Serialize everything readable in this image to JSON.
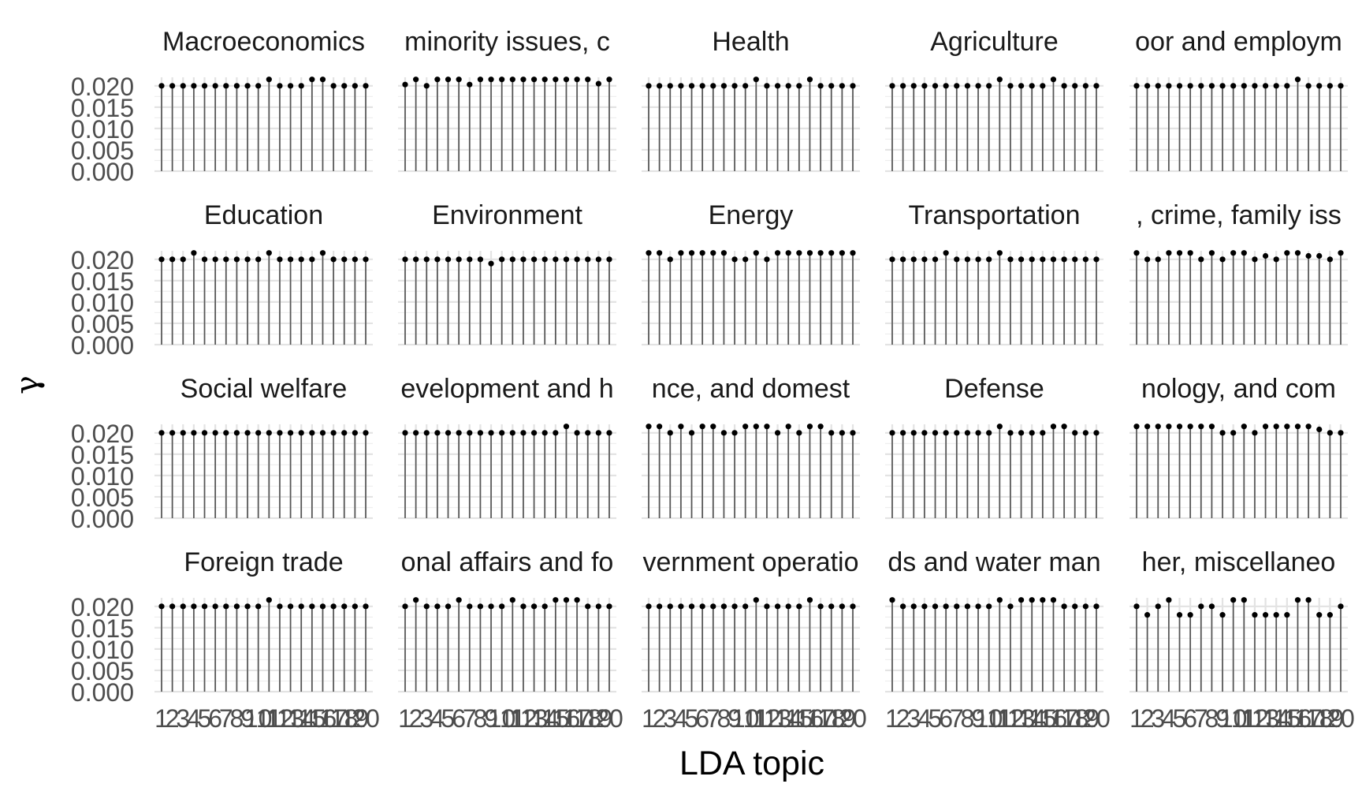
{
  "chart_data": {
    "type": "lollipop",
    "layout": "facet_wrap",
    "ncol": 5,
    "nrow": 4,
    "xlabel": "LDA topic",
    "ylabel": "γ",
    "x": [
      1,
      2,
      3,
      4,
      5,
      6,
      7,
      8,
      9,
      10,
      11,
      12,
      13,
      14,
      15,
      16,
      17,
      18,
      19,
      20
    ],
    "x_tick_labels": [
      "1",
      "2",
      "3",
      "4",
      "5",
      "6",
      "7",
      "8",
      "9",
      "10",
      "11",
      "12",
      "13",
      "14",
      "15",
      "16",
      "17",
      "18",
      "19",
      "20"
    ],
    "ylim": [
      0,
      0.022
    ],
    "y_ticks": [
      0.0,
      0.005,
      0.01,
      0.015,
      0.02
    ],
    "y_tick_labels": [
      "0.000",
      "0.005",
      "0.010",
      "0.015",
      "0.020"
    ],
    "grid": true,
    "panels": [
      {
        "title": "Macroeconomics",
        "values": [
          0.02,
          0.02,
          0.02,
          0.02,
          0.02,
          0.02,
          0.02,
          0.02,
          0.02,
          0.02,
          0.0215,
          0.02,
          0.02,
          0.02,
          0.0215,
          0.0215,
          0.02,
          0.02,
          0.02,
          0.02
        ]
      },
      {
        "title": "minority issues, c",
        "values": [
          0.0203,
          0.0215,
          0.02,
          0.0215,
          0.0215,
          0.0215,
          0.0203,
          0.0215,
          0.0215,
          0.0215,
          0.0215,
          0.0215,
          0.0215,
          0.0215,
          0.0215,
          0.0215,
          0.0215,
          0.0215,
          0.0205,
          0.0215
        ]
      },
      {
        "title": "Health",
        "values": [
          0.02,
          0.02,
          0.02,
          0.02,
          0.02,
          0.02,
          0.02,
          0.02,
          0.02,
          0.02,
          0.0215,
          0.02,
          0.02,
          0.02,
          0.02,
          0.0215,
          0.02,
          0.02,
          0.02,
          0.02
        ]
      },
      {
        "title": "Agriculture",
        "values": [
          0.02,
          0.02,
          0.02,
          0.02,
          0.02,
          0.02,
          0.02,
          0.02,
          0.02,
          0.02,
          0.0215,
          0.02,
          0.02,
          0.02,
          0.02,
          0.0215,
          0.02,
          0.02,
          0.02,
          0.02
        ]
      },
      {
        "title": "oor and employm",
        "values": [
          0.02,
          0.02,
          0.02,
          0.02,
          0.02,
          0.02,
          0.02,
          0.02,
          0.02,
          0.02,
          0.02,
          0.02,
          0.02,
          0.02,
          0.02,
          0.0215,
          0.02,
          0.02,
          0.02,
          0.02
        ]
      },
      {
        "title": "Education",
        "values": [
          0.02,
          0.02,
          0.02,
          0.0215,
          0.02,
          0.02,
          0.02,
          0.02,
          0.02,
          0.02,
          0.0215,
          0.02,
          0.02,
          0.02,
          0.02,
          0.0215,
          0.02,
          0.02,
          0.02,
          0.02
        ]
      },
      {
        "title": "Environment",
        "values": [
          0.02,
          0.02,
          0.02,
          0.02,
          0.02,
          0.02,
          0.02,
          0.02,
          0.019,
          0.02,
          0.02,
          0.02,
          0.02,
          0.02,
          0.02,
          0.02,
          0.02,
          0.02,
          0.02,
          0.02
        ]
      },
      {
        "title": "Energy",
        "values": [
          0.0215,
          0.0215,
          0.02,
          0.0215,
          0.0215,
          0.0215,
          0.0215,
          0.0215,
          0.02,
          0.02,
          0.0215,
          0.02,
          0.0215,
          0.0215,
          0.0215,
          0.0215,
          0.0215,
          0.0215,
          0.0215,
          0.0215
        ]
      },
      {
        "title": "Transportation",
        "values": [
          0.02,
          0.02,
          0.02,
          0.02,
          0.02,
          0.0215,
          0.02,
          0.02,
          0.02,
          0.02,
          0.0215,
          0.02,
          0.02,
          0.02,
          0.02,
          0.02,
          0.02,
          0.02,
          0.02,
          0.02
        ]
      },
      {
        "title": ", crime, family iss",
        "values": [
          0.0215,
          0.02,
          0.02,
          0.0215,
          0.0215,
          0.0215,
          0.02,
          0.0215,
          0.02,
          0.0215,
          0.0215,
          0.02,
          0.0208,
          0.02,
          0.0215,
          0.0215,
          0.0208,
          0.0208,
          0.02,
          0.0215
        ]
      },
      {
        "title": "Social welfare",
        "values": [
          0.02,
          0.02,
          0.02,
          0.02,
          0.02,
          0.02,
          0.02,
          0.02,
          0.02,
          0.02,
          0.02,
          0.02,
          0.02,
          0.02,
          0.02,
          0.02,
          0.02,
          0.02,
          0.02,
          0.02
        ]
      },
      {
        "title": "evelopment and h",
        "values": [
          0.02,
          0.02,
          0.02,
          0.02,
          0.02,
          0.02,
          0.02,
          0.02,
          0.02,
          0.02,
          0.02,
          0.02,
          0.02,
          0.02,
          0.02,
          0.0215,
          0.02,
          0.02,
          0.02,
          0.02
        ]
      },
      {
        "title": "nce, and domest",
        "values": [
          0.0215,
          0.0215,
          0.02,
          0.0215,
          0.02,
          0.0215,
          0.0215,
          0.02,
          0.02,
          0.0215,
          0.0215,
          0.0215,
          0.02,
          0.0215,
          0.02,
          0.0215,
          0.0215,
          0.02,
          0.02,
          0.02
        ]
      },
      {
        "title": "Defense",
        "values": [
          0.02,
          0.02,
          0.02,
          0.02,
          0.02,
          0.02,
          0.02,
          0.02,
          0.02,
          0.02,
          0.0215,
          0.02,
          0.02,
          0.02,
          0.02,
          0.0215,
          0.0215,
          0.02,
          0.02,
          0.02
        ]
      },
      {
        "title": "nology, and com",
        "values": [
          0.0215,
          0.0215,
          0.0215,
          0.0215,
          0.0215,
          0.0215,
          0.0215,
          0.0215,
          0.02,
          0.02,
          0.0215,
          0.02,
          0.0215,
          0.0215,
          0.0215,
          0.0215,
          0.0215,
          0.0208,
          0.02,
          0.02
        ]
      },
      {
        "title": "Foreign trade",
        "values": [
          0.02,
          0.02,
          0.02,
          0.02,
          0.02,
          0.02,
          0.02,
          0.02,
          0.02,
          0.02,
          0.0215,
          0.02,
          0.02,
          0.02,
          0.02,
          0.02,
          0.02,
          0.02,
          0.02,
          0.02
        ]
      },
      {
        "title": "onal affairs and fo",
        "values": [
          0.02,
          0.0215,
          0.02,
          0.02,
          0.02,
          0.0215,
          0.02,
          0.02,
          0.02,
          0.02,
          0.0215,
          0.02,
          0.02,
          0.02,
          0.0215,
          0.0215,
          0.0215,
          0.02,
          0.02,
          0.02
        ]
      },
      {
        "title": "vernment operatio",
        "values": [
          0.02,
          0.02,
          0.02,
          0.02,
          0.02,
          0.02,
          0.02,
          0.02,
          0.02,
          0.02,
          0.0215,
          0.02,
          0.02,
          0.02,
          0.02,
          0.0215,
          0.02,
          0.02,
          0.02,
          0.02
        ]
      },
      {
        "title": "ds and water man",
        "values": [
          0.0215,
          0.02,
          0.02,
          0.02,
          0.02,
          0.02,
          0.02,
          0.02,
          0.02,
          0.02,
          0.0215,
          0.02,
          0.0215,
          0.0215,
          0.0215,
          0.0215,
          0.02,
          0.02,
          0.02,
          0.02
        ]
      },
      {
        "title": "her, miscellaneo",
        "values": [
          0.02,
          0.018,
          0.02,
          0.0215,
          0.018,
          0.018,
          0.02,
          0.02,
          0.018,
          0.0215,
          0.0215,
          0.018,
          0.018,
          0.018,
          0.018,
          0.0215,
          0.0215,
          0.018,
          0.018,
          0.02
        ]
      }
    ]
  }
}
